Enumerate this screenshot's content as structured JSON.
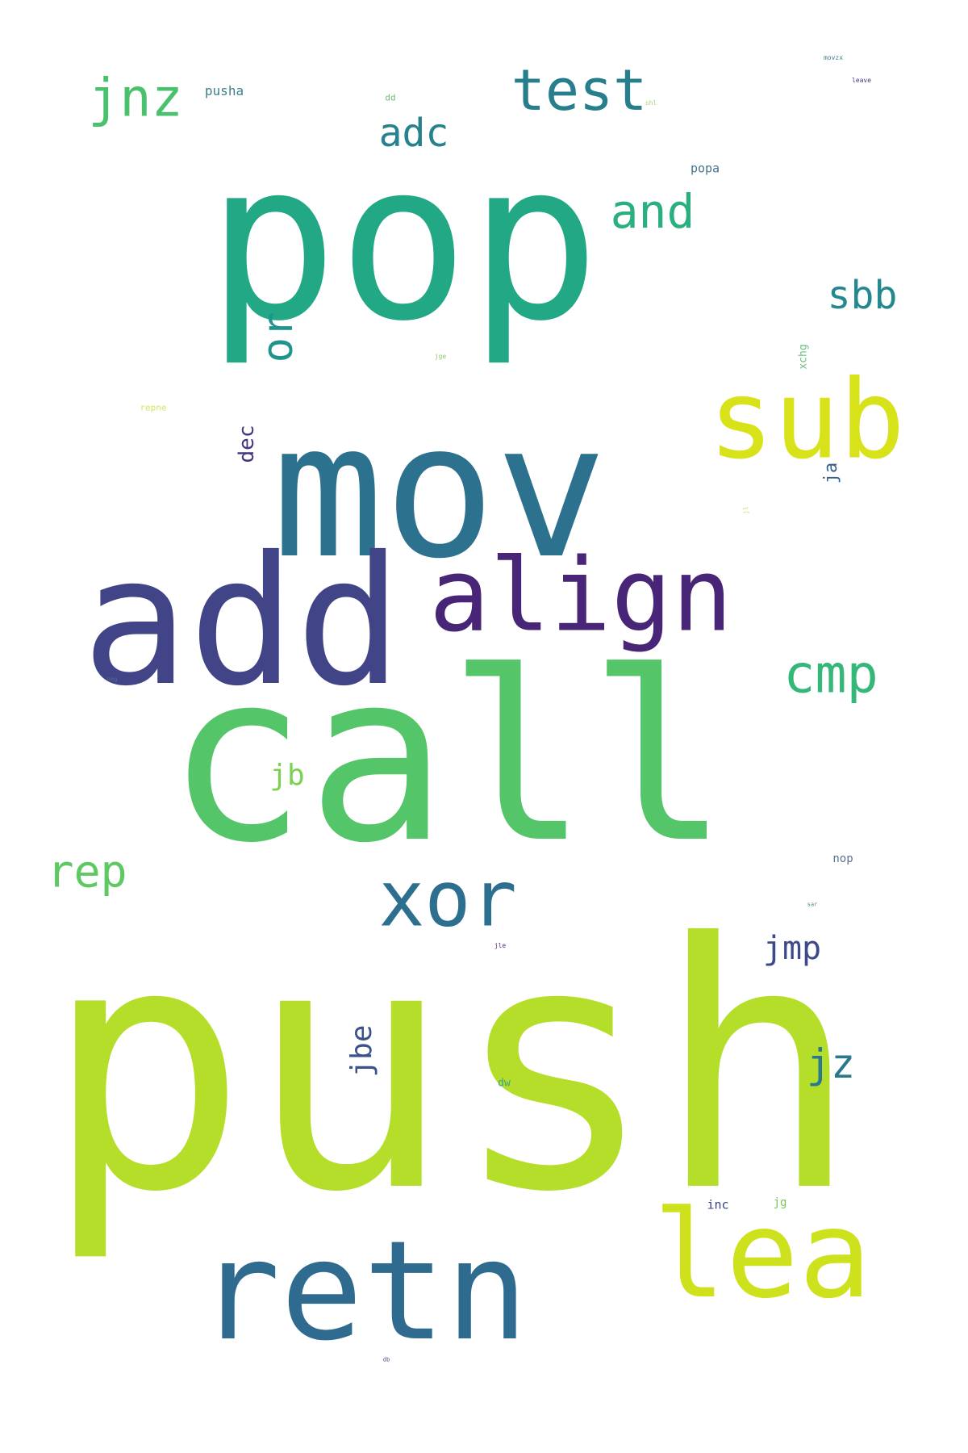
{
  "words": {
    "push": {
      "text": "push",
      "color": "#b5de2b"
    },
    "call": {
      "text": "call",
      "color": "#54c568"
    },
    "pop": {
      "text": "pop",
      "color": "#22a884"
    },
    "mov": {
      "text": "mov",
      "color": "#2c718e"
    },
    "add": {
      "text": "add",
      "color": "#414487"
    },
    "retn": {
      "text": "retn",
      "color": "#2e6b8e"
    },
    "lea": {
      "text": "lea",
      "color": "#cde11d"
    },
    "sub": {
      "text": "sub",
      "color": "#d8e219"
    },
    "align": {
      "text": "align",
      "color": "#482576"
    },
    "xor": {
      "text": "xor",
      "color": "#2d6f8e"
    },
    "test": {
      "text": "test",
      "color": "#277f8e"
    },
    "jnz": {
      "text": "jnz",
      "color": "#4ac16d"
    },
    "cmp": {
      "text": "cmp",
      "color": "#35b779"
    },
    "and": {
      "text": "and",
      "color": "#2ab07f"
    },
    "rep": {
      "text": "rep",
      "color": "#5ec962"
    },
    "sbb": {
      "text": "sbb",
      "color": "#23898e"
    },
    "adc": {
      "text": "adc",
      "color": "#26828e"
    },
    "jz": {
      "text": "jz",
      "color": "#2a788e"
    },
    "or": {
      "text": "or",
      "color": "#1f948c"
    },
    "jmp": {
      "text": "jmp",
      "color": "#3e4989"
    },
    "jbe": {
      "text": "jbe",
      "color": "#3b528b"
    },
    "jb": {
      "text": "jb",
      "color": "#7ad151"
    },
    "dec": {
      "text": "dec",
      "color": "#46337e"
    },
    "ja": {
      "text": "ja",
      "color": "#355f8d"
    },
    "pusha": {
      "text": "pusha",
      "color": "#3e7f8e"
    },
    "popa": {
      "text": "popa",
      "color": "#46758e"
    },
    "nop": {
      "text": "nop",
      "color": "#5b7393"
    },
    "inc": {
      "text": "inc",
      "color": "#3a3f86"
    },
    "jg": {
      "text": "jg",
      "color": "#78c45c"
    },
    "dw": {
      "text": "dw",
      "color": "#3aa389"
    },
    "xchg": {
      "text": "xchg",
      "color": "#68bf7d"
    },
    "dd": {
      "text": "dd",
      "color": "#73bb74"
    },
    "repne": {
      "text": "repne",
      "color": "#d6e560"
    },
    "movzx": {
      "text": "movzx",
      "color": "#4a7c93"
    },
    "leave": {
      "text": "leave",
      "color": "#403d80"
    },
    "jge": {
      "text": "jge",
      "color": "#8bc766"
    },
    "shl": {
      "text": "shl",
      "color": "#a8d66c"
    },
    "jl": {
      "text": "jl",
      "color": "#c2de6e"
    },
    "neg": {
      "text": "neg",
      "color": "#4a709a"
    },
    "jle": {
      "text": "jle",
      "color": "#5a2d7e"
    },
    "sar": {
      "text": "sar",
      "color": "#3e8a8f"
    },
    "db": {
      "text": "db",
      "color": "#5a4a8a"
    }
  }
}
